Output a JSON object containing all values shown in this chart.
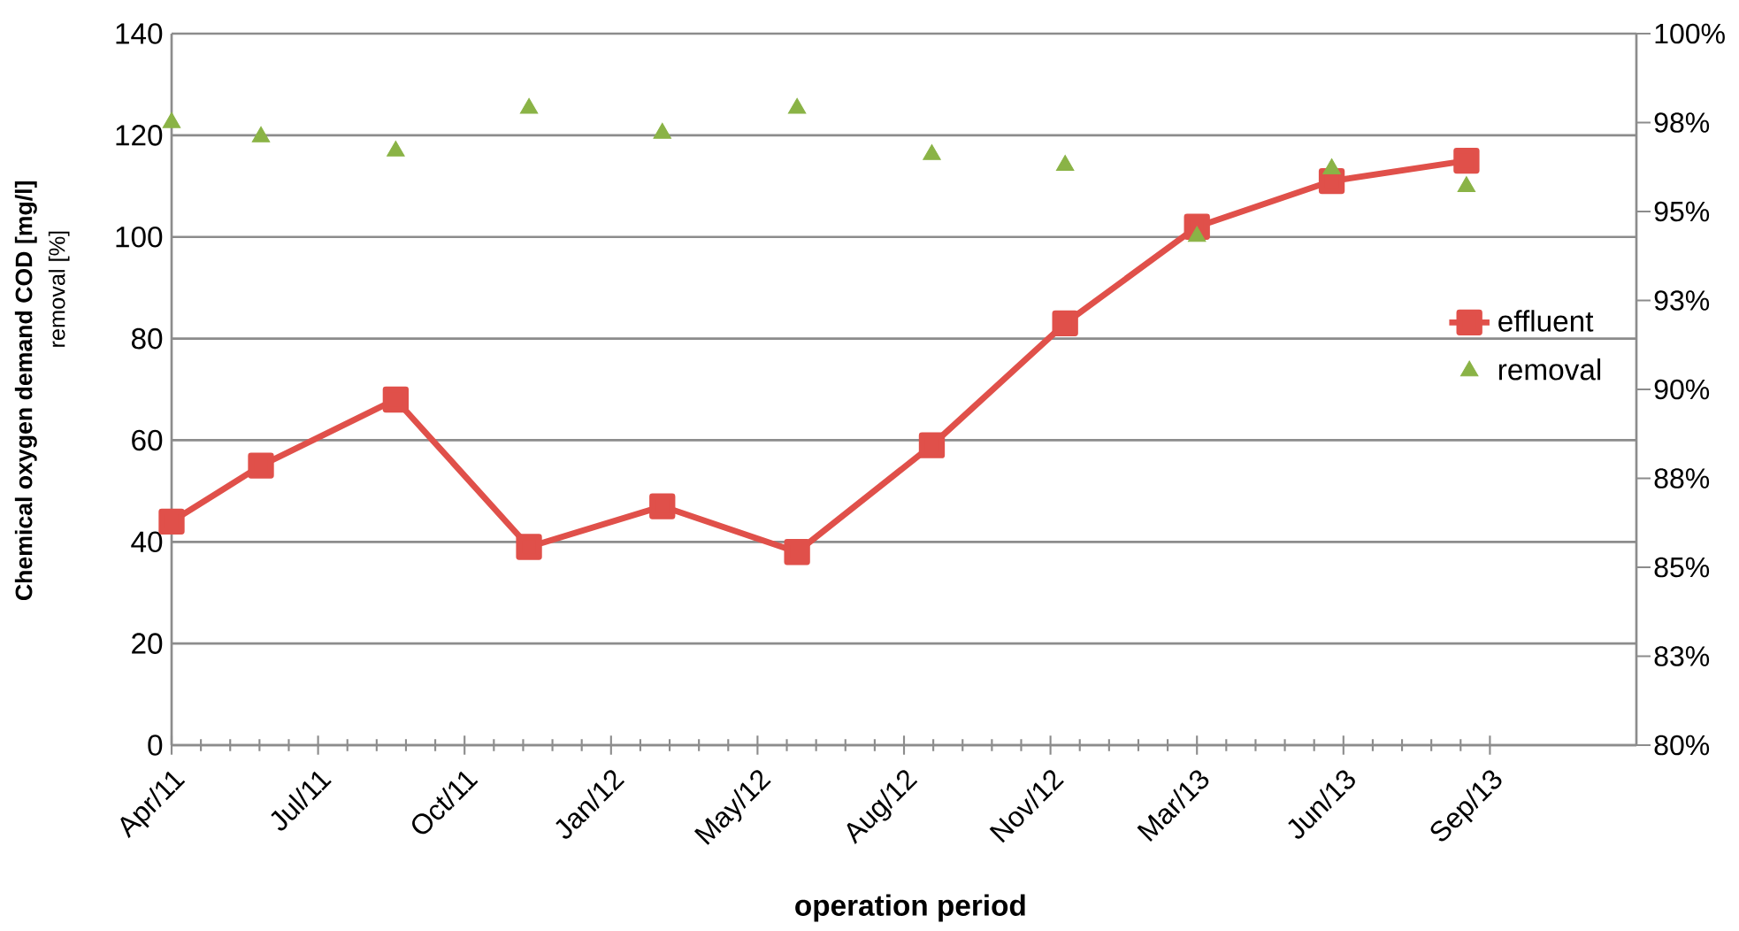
{
  "chart_data": {
    "type": "line",
    "xlabel": "operation period",
    "ylabel": "Chemical oxygen demand COD [mg/l]",
    "annotations": [
      "removal  [%]"
    ],
    "x": [
      "2011-04-01",
      "2011-06-01",
      "2011-09-01",
      "2011-12-01",
      "2012-03-01",
      "2012-06-01",
      "2012-09-01",
      "2012-12-01",
      "2013-03-01",
      "2013-06-01",
      "2013-09-01"
    ],
    "series": [
      {
        "name": "effluent",
        "color": "#e0504a",
        "marker": "square",
        "line_style": "solid",
        "values": [
          44,
          55,
          68,
          39,
          47,
          38,
          59,
          83,
          102,
          111,
          115
        ]
      },
      {
        "name": "removal",
        "type": "scatter",
        "axis": "y2",
        "color": "#8ab346",
        "marker": "triangle",
        "values": [
          97.5,
          97.1,
          96.7,
          97.9,
          97.2,
          97.9,
          96.6,
          96.3,
          94.3,
          96.2,
          95.7
        ]
      }
    ],
    "xlim": [
      "2011-04-01",
      "2013-12-26"
    ],
    "xticks": [
      {
        "value": "2011-04-01",
        "label": "Apr/11"
      },
      {
        "value": "2011-07-10",
        "label": "Jul/11"
      },
      {
        "value": "2011-10-18",
        "label": "Oct/11"
      },
      {
        "value": "2012-01-26",
        "label": "Jan/12"
      },
      {
        "value": "2012-05-05",
        "label": "May/12"
      },
      {
        "value": "2012-08-13",
        "label": "Aug/12"
      },
      {
        "value": "2012-11-21",
        "label": "Nov/12"
      },
      {
        "value": "2013-03-01",
        "label": "Mar/13"
      },
      {
        "value": "2013-06-09",
        "label": "Jun/13"
      },
      {
        "value": "2013-09-17",
        "label": "Sep/13"
      }
    ],
    "ylim": [
      0,
      140
    ],
    "yticks": [
      0,
      20,
      40,
      60,
      80,
      100,
      120,
      140
    ],
    "y2lim": [
      80,
      100
    ],
    "y2ticks": [
      {
        "value": 80,
        "label": "80%"
      },
      {
        "value": 82.5,
        "label": "83%"
      },
      {
        "value": 85,
        "label": "85%"
      },
      {
        "value": 87.5,
        "label": "88%"
      },
      {
        "value": 90,
        "label": "90%"
      },
      {
        "value": 92.5,
        "label": "93%"
      },
      {
        "value": 95,
        "label": "95%"
      },
      {
        "value": 97.5,
        "label": "98%"
      },
      {
        "value": 100,
        "label": "100%"
      }
    ],
    "grid": "y",
    "legend": "right"
  }
}
